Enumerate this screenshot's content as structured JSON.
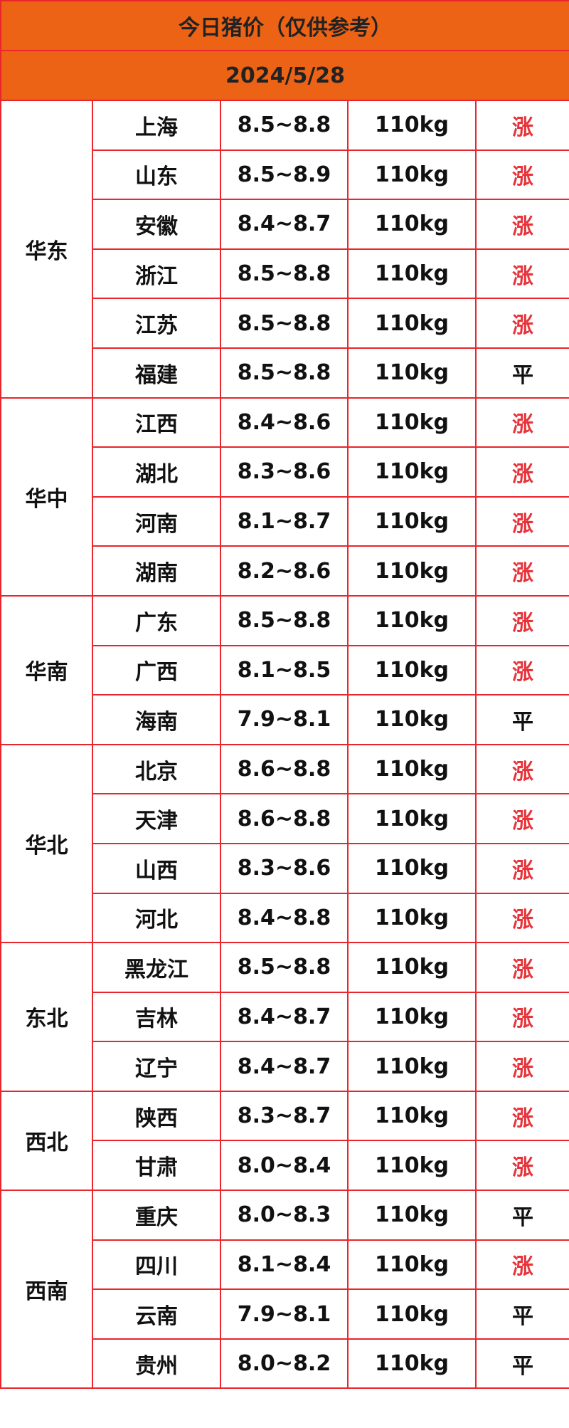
{
  "header": {
    "title": "今日猪价（仅供参考）",
    "date": "2024/5/28"
  },
  "regions": [
    {
      "name": "华东",
      "rows": [
        {
          "province": "上海",
          "price": "8.5~8.8",
          "weight": "110kg",
          "trend": "涨",
          "trend_color": "#e8333a"
        },
        {
          "province": "山东",
          "price": "8.5~8.9",
          "weight": "110kg",
          "trend": "涨",
          "trend_color": "#e8333a"
        },
        {
          "province": "安徽",
          "price": "8.4~8.7",
          "weight": "110kg",
          "trend": "涨",
          "trend_color": "#e8333a"
        },
        {
          "province": "浙江",
          "price": "8.5~8.8",
          "weight": "110kg",
          "trend": "涨",
          "trend_color": "#e8333a"
        },
        {
          "province": "江苏",
          "price": "8.5~8.8",
          "weight": "110kg",
          "trend": "涨",
          "trend_color": "#e8333a"
        },
        {
          "province": "福建",
          "price": "8.5~8.8",
          "weight": "110kg",
          "trend": "平",
          "trend_color": "#111111"
        }
      ]
    },
    {
      "name": "华中",
      "rows": [
        {
          "province": "江西",
          "price": "8.4~8.6",
          "weight": "110kg",
          "trend": "涨",
          "trend_color": "#e8333a"
        },
        {
          "province": "湖北",
          "price": "8.3~8.6",
          "weight": "110kg",
          "trend": "涨",
          "trend_color": "#e8333a"
        },
        {
          "province": "河南",
          "price": "8.1~8.7",
          "weight": "110kg",
          "trend": "涨",
          "trend_color": "#e8333a"
        },
        {
          "province": "湖南",
          "price": "8.2~8.6",
          "weight": "110kg",
          "trend": "涨",
          "trend_color": "#e8333a"
        }
      ]
    },
    {
      "name": "华南",
      "rows": [
        {
          "province": "广东",
          "price": "8.5~8.8",
          "weight": "110kg",
          "trend": "涨",
          "trend_color": "#e8333a"
        },
        {
          "province": "广西",
          "price": "8.1~8.5",
          "weight": "110kg",
          "trend": "涨",
          "trend_color": "#e8333a"
        },
        {
          "province": "海南",
          "price": "7.9~8.1",
          "weight": "110kg",
          "trend": "平",
          "trend_color": "#111111"
        }
      ]
    },
    {
      "name": "华北",
      "rows": [
        {
          "province": "北京",
          "price": "8.6~8.8",
          "weight": "110kg",
          "trend": "涨",
          "trend_color": "#e8333a"
        },
        {
          "province": "天津",
          "price": "8.6~8.8",
          "weight": "110kg",
          "trend": "涨",
          "trend_color": "#e8333a"
        },
        {
          "province": "山西",
          "price": "8.3~8.6",
          "weight": "110kg",
          "trend": "涨",
          "trend_color": "#e8333a"
        },
        {
          "province": "河北",
          "price": "8.4~8.8",
          "weight": "110kg",
          "trend": "涨",
          "trend_color": "#e8333a"
        }
      ]
    },
    {
      "name": "东北",
      "rows": [
        {
          "province": "黑龙江",
          "price": "8.5~8.8",
          "weight": "110kg",
          "trend": "涨",
          "trend_color": "#e8333a"
        },
        {
          "province": "吉林",
          "price": "8.4~8.7",
          "weight": "110kg",
          "trend": "涨",
          "trend_color": "#e8333a"
        },
        {
          "province": "辽宁",
          "price": "8.4~8.7",
          "weight": "110kg",
          "trend": "涨",
          "trend_color": "#e8333a"
        }
      ]
    },
    {
      "name": "西北",
      "rows": [
        {
          "province": "陕西",
          "price": "8.3~8.7",
          "weight": "110kg",
          "trend": "涨",
          "trend_color": "#e8333a"
        },
        {
          "province": "甘肃",
          "price": "8.0~8.4",
          "weight": "110kg",
          "trend": "涨",
          "trend_color": "#e8333a"
        }
      ]
    },
    {
      "name": "西南",
      "rows": [
        {
          "province": "重庆",
          "price": "8.0~8.3",
          "weight": "110kg",
          "trend": "平",
          "trend_color": "#111111"
        },
        {
          "province": "四川",
          "price": "8.1~8.4",
          "weight": "110kg",
          "trend": "涨",
          "trend_color": "#e8333a"
        },
        {
          "province": "云南",
          "price": "7.9~8.1",
          "weight": "110kg",
          "trend": "平",
          "trend_color": "#111111"
        },
        {
          "province": "贵州",
          "price": "8.0~8.2",
          "weight": "110kg",
          "trend": "平",
          "trend_color": "#111111"
        }
      ]
    }
  ]
}
